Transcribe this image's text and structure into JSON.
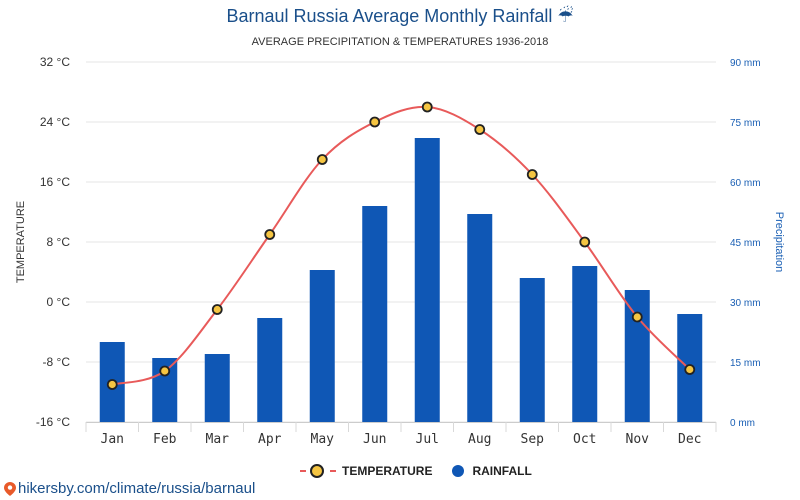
{
  "chart_data": {
    "type": "bar+line",
    "title": "Barnaul Russia Average Monthly Rainfall ☔",
    "subtitle": "AVERAGE PRECIPITATION & TEMPERATURES 1936-2018",
    "categories": [
      "Jan",
      "Feb",
      "Mar",
      "Apr",
      "May",
      "Jun",
      "Jul",
      "Aug",
      "Sep",
      "Oct",
      "Nov",
      "Dec"
    ],
    "series": [
      {
        "name": "TEMPERATURE",
        "axis": "left",
        "unit": "°C",
        "values": [
          -11,
          -9.2,
          -1,
          9,
          19,
          24,
          26,
          23,
          17,
          8,
          -2,
          -9
        ]
      },
      {
        "name": "RAINFALL",
        "axis": "right",
        "unit": "mm",
        "values": [
          20,
          16,
          17,
          26,
          38,
          54,
          71,
          52,
          36,
          39,
          33,
          27
        ]
      }
    ],
    "left_axis": {
      "label": "TEMPERATURE",
      "min": -16,
      "max": 32,
      "ticks": [
        "32 °C",
        "24 °C",
        "16 °C",
        "8 °C",
        "0 °C",
        "-8 °C",
        "-16 °C"
      ]
    },
    "right_axis": {
      "label": "Precipitation",
      "min": 0,
      "max": 90,
      "ticks": [
        "90 mm",
        "75 mm",
        "60 mm",
        "45 mm",
        "30 mm",
        "15 mm",
        "0 mm"
      ]
    },
    "colors": {
      "bar": "#0f57b5",
      "line": "#e85a5a",
      "marker": "#f5c542",
      "title": "#1a4f8a"
    }
  },
  "legend": {
    "temperature": "TEMPERATURE",
    "rainfall": "RAINFALL"
  },
  "footer": {
    "link": "hikersby.com/climate/russia/barnaul"
  }
}
